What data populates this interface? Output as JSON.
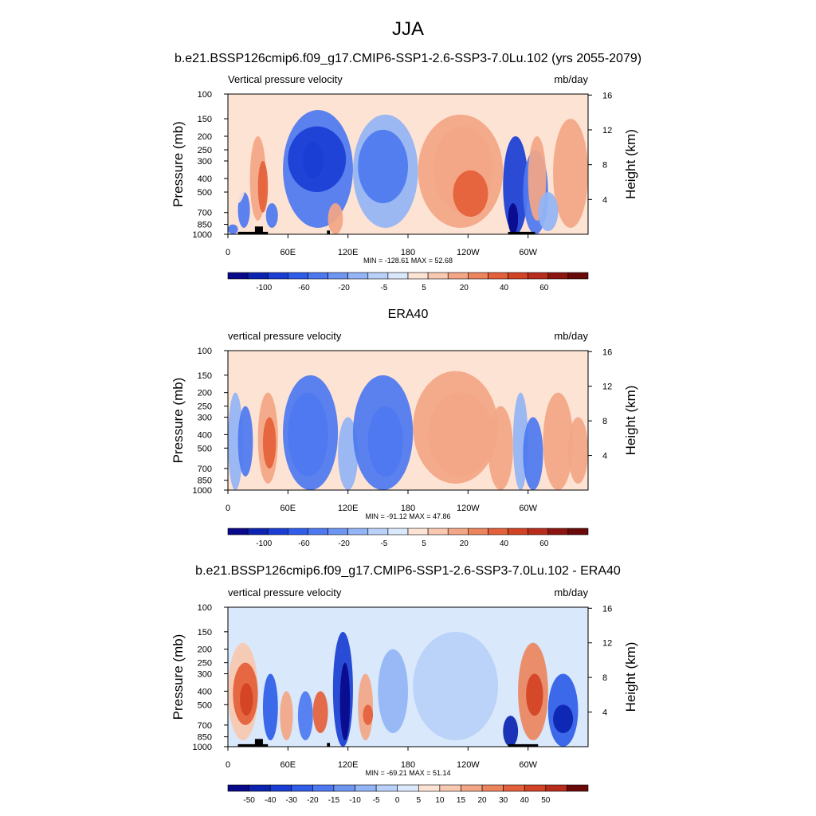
{
  "figure": {
    "title": "JJA"
  },
  "chart_data": [
    {
      "type": "heatmap",
      "title": "b.e21.BSSP126cmip6.f09_g17.CMIP6-SSP1-2.6-SSP3-7.0Lu.102 (yrs 2055-2079)",
      "left_label": "Vertical pressure velocity",
      "right_label": "mb/day",
      "ylabel": "Pressure (mb)",
      "y2label": "Height (km)",
      "x_ticks": [
        "0",
        "60E",
        "120E",
        "180",
        "120W",
        "60W"
      ],
      "x_tick_lon": [
        0,
        60,
        120,
        180,
        240,
        300
      ],
      "xlim": [
        0,
        360
      ],
      "y_ticks": [
        100,
        150,
        200,
        250,
        300,
        400,
        500,
        700,
        850,
        1000
      ],
      "ylim": [
        1000,
        100
      ],
      "y_scale": "log",
      "y2_ticks": [
        4,
        8,
        12,
        16
      ],
      "stats": "MIN = -128.61  MAX =  52.68",
      "topography": true,
      "colorbar_labels": [
        "-100",
        "-60",
        "-20",
        "-5",
        "5",
        "20",
        "40",
        "60"
      ],
      "colorbar_colors": [
        "#08088a",
        "#0b23b0",
        "#1a3ed4",
        "#2f5ce8",
        "#4d78f0",
        "#6e95f2",
        "#93b4f5",
        "#b9d0f8",
        "#d9e8fb",
        "#fde3d3",
        "#f9c8b0",
        "#f3a685",
        "#ec845e",
        "#e4603a",
        "#d24224",
        "#b82c1c",
        "#8c1410",
        "#690909"
      ],
      "cells": [
        {
          "lon": [
            0,
            10
          ],
          "p": [
            1000,
            850
          ],
          "v": -40
        },
        {
          "lon": [
            10,
            22
          ],
          "p": [
            900,
            500
          ],
          "v": -30
        },
        {
          "lon": [
            22,
            38
          ],
          "p": [
            800,
            200
          ],
          "v": 20
        },
        {
          "lon": [
            30,
            40
          ],
          "p": [
            700,
            300
          ],
          "v": 40
        },
        {
          "lon": [
            38,
            50
          ],
          "p": [
            900,
            600
          ],
          "v": -20
        },
        {
          "lon": [
            0,
            20
          ],
          "p": [
            600,
            150
          ],
          "v": -3
        },
        {
          "lon": [
            55,
            125
          ],
          "p": [
            900,
            130
          ],
          "v": -20
        },
        {
          "lon": [
            60,
            118
          ],
          "p": [
            500,
            170
          ],
          "v": -60
        },
        {
          "lon": [
            75,
            95
          ],
          "p": [
            400,
            220
          ],
          "v": -90
        },
        {
          "lon": [
            100,
            115
          ],
          "p": [
            1000,
            600
          ],
          "v": 10
        },
        {
          "lon": [
            125,
            190
          ],
          "p": [
            900,
            140
          ],
          "v": -10
        },
        {
          "lon": [
            130,
            180
          ],
          "p": [
            600,
            180
          ],
          "v": -25
        },
        {
          "lon": [
            190,
            275
          ],
          "p": [
            900,
            140
          ],
          "v": 10
        },
        {
          "lon": [
            205,
            265
          ],
          "p": [
            700,
            170
          ],
          "v": 20
        },
        {
          "lon": [
            225,
            260
          ],
          "p": [
            750,
            350
          ],
          "v": 40
        },
        {
          "lon": [
            275,
            300
          ],
          "p": [
            1000,
            200
          ],
          "v": -60
        },
        {
          "lon": [
            280,
            290
          ],
          "p": [
            1000,
            600
          ],
          "v": -100
        },
        {
          "lon": [
            295,
            320
          ],
          "p": [
            1000,
            250
          ],
          "v": -30
        },
        {
          "lon": [
            300,
            318
          ],
          "p": [
            800,
            200
          ],
          "v": 20
        },
        {
          "lon": [
            325,
            360
          ],
          "p": [
            900,
            150
          ],
          "v": 8
        },
        {
          "lon": [
            310,
            330
          ],
          "p": [
            950,
            500
          ],
          "v": -15
        },
        {
          "lon": [
            0,
            360
          ],
          "p": [
            130,
            100
          ],
          "v": 3
        }
      ],
      "topo_blocks": [
        {
          "lon": [
            10,
            40
          ],
          "p": [
            1000,
            960
          ]
        },
        {
          "lon": [
            27,
            35
          ],
          "p": [
            1000,
            880
          ]
        },
        {
          "lon": [
            99,
            102
          ],
          "p": [
            1000,
            940
          ]
        },
        {
          "lon": [
            280,
            307
          ],
          "p": [
            1000,
            960
          ]
        }
      ]
    },
    {
      "type": "heatmap",
      "title": "ERA40",
      "left_label": "vertical pressure velocity",
      "right_label": "mb/day",
      "ylabel": "Pressure (mb)",
      "y2label": "Height (km)",
      "x_ticks": [
        "0",
        "60E",
        "120E",
        "180",
        "120W",
        "60W"
      ],
      "x_tick_lon": [
        0,
        60,
        120,
        180,
        240,
        300
      ],
      "xlim": [
        0,
        360
      ],
      "y_ticks": [
        100,
        150,
        200,
        250,
        300,
        400,
        500,
        700,
        850,
        1000
      ],
      "ylim": [
        1000,
        100
      ],
      "y_scale": "log",
      "y2_ticks": [
        4,
        8,
        12,
        16
      ],
      "stats": "MIN = -91.12  MAX =  47.86",
      "topography": false,
      "colorbar_labels": [
        "-100",
        "-60",
        "-20",
        "-5",
        "5",
        "20",
        "40",
        "60"
      ],
      "colorbar_colors": [
        "#08088a",
        "#0b23b0",
        "#1a3ed4",
        "#2f5ce8",
        "#4d78f0",
        "#6e95f2",
        "#93b4f5",
        "#b9d0f8",
        "#d9e8fb",
        "#fde3d3",
        "#f9c8b0",
        "#f3a685",
        "#ec845e",
        "#e4603a",
        "#d24224",
        "#b82c1c",
        "#8c1410",
        "#690909"
      ],
      "cells": [
        {
          "lon": [
            0,
            15
          ],
          "p": [
            1000,
            200
          ],
          "v": -15
        },
        {
          "lon": [
            10,
            25
          ],
          "p": [
            800,
            250
          ],
          "v": -40
        },
        {
          "lon": [
            30,
            50
          ],
          "p": [
            900,
            200
          ],
          "v": 20
        },
        {
          "lon": [
            35,
            48
          ],
          "p": [
            700,
            300
          ],
          "v": 40
        },
        {
          "lon": [
            55,
            110
          ],
          "p": [
            1000,
            150
          ],
          "v": -20
        },
        {
          "lon": [
            60,
            100
          ],
          "p": [
            800,
            200
          ],
          "v": -40
        },
        {
          "lon": [
            110,
            130
          ],
          "p": [
            1000,
            300
          ],
          "v": -10
        },
        {
          "lon": [
            125,
            185
          ],
          "p": [
            1000,
            150
          ],
          "v": -20
        },
        {
          "lon": [
            140,
            175
          ],
          "p": [
            800,
            250
          ],
          "v": -50
        },
        {
          "lon": [
            185,
            270
          ],
          "p": [
            900,
            140
          ],
          "v": 10
        },
        {
          "lon": [
            200,
            265
          ],
          "p": [
            800,
            200
          ],
          "v": 20
        },
        {
          "lon": [
            260,
            285
          ],
          "p": [
            1000,
            250
          ],
          "v": 20
        },
        {
          "lon": [
            285,
            300
          ],
          "p": [
            1000,
            200
          ],
          "v": -15
        },
        {
          "lon": [
            295,
            315
          ],
          "p": [
            1000,
            300
          ],
          "v": -40
        },
        {
          "lon": [
            315,
            345
          ],
          "p": [
            1000,
            200
          ],
          "v": 8
        },
        {
          "lon": [
            340,
            360
          ],
          "p": [
            900,
            300
          ],
          "v": 20
        },
        {
          "lon": [
            0,
            360
          ],
          "p": [
            130,
            100
          ],
          "v": 3
        }
      ],
      "topo_blocks": []
    },
    {
      "type": "heatmap",
      "title": "b.e21.BSSP126cmip6.f09_g17.CMIP6-SSP1-2.6-SSP3-7.0Lu.102 - ERA40",
      "left_label": "vertical pressure velocity",
      "right_label": "mb/day",
      "ylabel": "Pressure (mb)",
      "y2label": "Height (km)",
      "x_ticks": [
        "0",
        "60E",
        "120E",
        "180",
        "120W",
        "60W"
      ],
      "x_tick_lon": [
        0,
        60,
        120,
        180,
        240,
        300
      ],
      "xlim": [
        0,
        360
      ],
      "y_ticks": [
        100,
        150,
        200,
        250,
        300,
        400,
        500,
        700,
        850,
        1000
      ],
      "ylim": [
        1000,
        100
      ],
      "y_scale": "log",
      "y2_ticks": [
        4,
        8,
        12,
        16
      ],
      "stats": "MIN = -69.21  MAX =  51.14",
      "topography": true,
      "colorbar_labels": [
        "-50",
        "-40",
        "-30",
        "-20",
        "-15",
        "-10",
        "-5",
        "0",
        "5",
        "10",
        "15",
        "20",
        "30",
        "40",
        "50"
      ],
      "colorbar_colors": [
        "#08088a",
        "#0b23b0",
        "#1a3ed4",
        "#2f5ce8",
        "#4d78f0",
        "#6e95f2",
        "#93b4f5",
        "#b9d0f8",
        "#d9e8fb",
        "#fde3d3",
        "#f9c8b0",
        "#f3a685",
        "#ec845e",
        "#e4603a",
        "#d24224",
        "#b82c1c",
        "#690909"
      ],
      "cells": [
        {
          "lon": [
            0,
            30
          ],
          "p": [
            900,
            180
          ],
          "v": 10
        },
        {
          "lon": [
            5,
            30
          ],
          "p": [
            700,
            250
          ],
          "v": 25
        },
        {
          "lon": [
            12,
            25
          ],
          "p": [
            600,
            350
          ],
          "v": 40
        },
        {
          "lon": [
            35,
            50
          ],
          "p": [
            900,
            300
          ],
          "v": -20
        },
        {
          "lon": [
            52,
            65
          ],
          "p": [
            900,
            400
          ],
          "v": 15
        },
        {
          "lon": [
            70,
            85
          ],
          "p": [
            900,
            400
          ],
          "v": -15
        },
        {
          "lon": [
            85,
            100
          ],
          "p": [
            800,
            400
          ],
          "v": 25
        },
        {
          "lon": [
            105,
            125
          ],
          "p": [
            1000,
            150
          ],
          "v": -30
        },
        {
          "lon": [
            112,
            122
          ],
          "p": [
            900,
            250
          ],
          "v": -50
        },
        {
          "lon": [
            130,
            145
          ],
          "p": [
            900,
            300
          ],
          "v": 15
        },
        {
          "lon": [
            135,
            145
          ],
          "p": [
            700,
            500
          ],
          "v": 30
        },
        {
          "lon": [
            150,
            180
          ],
          "p": [
            800,
            200
          ],
          "v": -8
        },
        {
          "lon": [
            185,
            270
          ],
          "p": [
            900,
            150
          ],
          "v": -3
        },
        {
          "lon": [
            275,
            290
          ],
          "p": [
            1000,
            600
          ],
          "v": -40
        },
        {
          "lon": [
            290,
            320
          ],
          "p": [
            900,
            180
          ],
          "v": 20
        },
        {
          "lon": [
            298,
            315
          ],
          "p": [
            600,
            300
          ],
          "v": 40
        },
        {
          "lon": [
            320,
            350
          ],
          "p": [
            1000,
            300
          ],
          "v": -25
        },
        {
          "lon": [
            325,
            345
          ],
          "p": [
            800,
            500
          ],
          "v": -40
        }
      ],
      "topo_blocks": [
        {
          "lon": [
            10,
            40
          ],
          "p": [
            1000,
            960
          ]
        },
        {
          "lon": [
            27,
            35
          ],
          "p": [
            1000,
            880
          ]
        },
        {
          "lon": [
            99,
            102
          ],
          "p": [
            1000,
            940
          ]
        },
        {
          "lon": [
            280,
            310
          ],
          "p": [
            1000,
            960
          ]
        }
      ]
    }
  ]
}
